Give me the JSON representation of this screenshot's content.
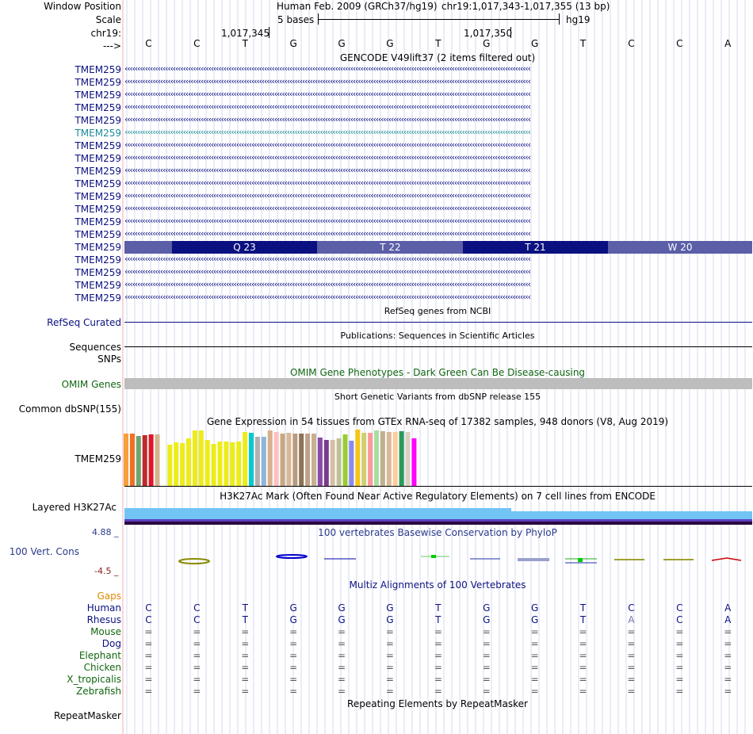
{
  "header": {
    "window_position_label": "Window Position",
    "scale_label": "Scale",
    "chrom_label": "chr19:",
    "strand_label": "--->",
    "assembly_text": "Human Feb. 2009 (GRCh37/hg19)",
    "position_text": "chr19:1,017,343-1,017,355 (13 bp)",
    "scale_text": "5 bases",
    "db_text": "hg19",
    "tick1": "1,017,345",
    "tick2": "1,017,350"
  },
  "bases": [
    "C",
    "C",
    "T",
    "G",
    "G",
    "G",
    "T",
    "G",
    "G",
    "T",
    "C",
    "C",
    "A"
  ],
  "gencode": {
    "title": "GENCODE V49lift37 (2 items filtered out)",
    "rows": [
      "TMEM259",
      "TMEM259",
      "TMEM259",
      "TMEM259",
      "TMEM259",
      "TMEM259",
      "TMEM259",
      "TMEM259",
      "TMEM259",
      "TMEM259",
      "TMEM259",
      "TMEM259",
      "TMEM259",
      "TMEM259",
      "TMEM259",
      "TMEM259",
      "TMEM259",
      "TMEM259",
      "TMEM259"
    ],
    "codons": [
      "Q 23",
      "T 22",
      "T 21",
      "W 20"
    ],
    "highlight_color": "#1a8a99",
    "dark_color": "#0b1080",
    "light_color": "#5b5fa8"
  },
  "refseq": {
    "title": "RefSeq genes from NCBI",
    "label": "RefSeq Curated"
  },
  "pubs": {
    "title": "Publications: Sequences in Scientific Articles",
    "label": "Sequences"
  },
  "snps": {
    "label": "SNPs"
  },
  "omim": {
    "title": "OMIM Gene Phenotypes - Dark Green Can Be Disease-causing",
    "label": "OMIM Genes",
    "color": "#116611"
  },
  "dbsnp": {
    "title": "Short Genetic Variants from dbSNP release 155",
    "label": "Common dbSNP(155)"
  },
  "gtex": {
    "title": "Gene Expression in 54 tissues from GTEx RNA-seq of 17382 samples, 948 donors (V8, Aug 2019)",
    "label": "TMEM259"
  },
  "h3k27ac": {
    "title": "H3K27Ac Mark (Often Found Near Active Regulatory Elements) on 7 cell lines from ENCODE",
    "label": "Layered H3K27Ac"
  },
  "cons": {
    "title": "100 vertebrates Basewise Conservation by PhyloP",
    "label": "100 Vert. Cons",
    "max": "4.88 _",
    "min": "-4.5 _"
  },
  "multiz": {
    "title": "Multiz Alignments of 100 Vertebrates",
    "gaps_label": "Gaps",
    "species": [
      {
        "name": "Human",
        "color": "#0b1080",
        "row": [
          "C",
          "C",
          "T",
          "G",
          "G",
          "G",
          "T",
          "G",
          "G",
          "T",
          "C",
          "C",
          "A"
        ]
      },
      {
        "name": "Rhesus",
        "color": "#0b1080",
        "row": [
          "C",
          "C",
          "T",
          "G",
          "G",
          "G",
          "T",
          "G",
          "G",
          "T",
          "A",
          "C",
          "A"
        ]
      },
      {
        "name": "Mouse",
        "color": "#116611",
        "row": [
          "=",
          "=",
          "=",
          "=",
          "=",
          "=",
          "=",
          "=",
          "=",
          "=",
          "=",
          "=",
          "="
        ]
      },
      {
        "name": "Dog",
        "color": "#0b1080",
        "row": [
          "=",
          "=",
          "=",
          "=",
          "=",
          "=",
          "=",
          "=",
          "=",
          "=",
          "=",
          "=",
          "="
        ]
      },
      {
        "name": "Elephant",
        "color": "#116611",
        "row": [
          "=",
          "=",
          "=",
          "=",
          "=",
          "=",
          "=",
          "=",
          "=",
          "=",
          "=",
          "=",
          "="
        ]
      },
      {
        "name": "Chicken",
        "color": "#116611",
        "row": [
          "=",
          "=",
          "=",
          "=",
          "=",
          "=",
          "=",
          "=",
          "=",
          "=",
          "=",
          "=",
          "="
        ]
      },
      {
        "name": "X_tropicalis",
        "color": "#116611",
        "row": [
          "=",
          "=",
          "=",
          "=",
          "=",
          "=",
          "=",
          "=",
          "=",
          "=",
          "=",
          "=",
          "="
        ]
      },
      {
        "name": "Zebrafish",
        "color": "#116611",
        "row": [
          "=",
          "=",
          "=",
          "=",
          "=",
          "=",
          "=",
          "=",
          "=",
          "=",
          "=",
          "=",
          "="
        ]
      }
    ]
  },
  "repeat": {
    "title": "Repeating Elements by RepeatMasker",
    "label": "RepeatMasker"
  }
}
